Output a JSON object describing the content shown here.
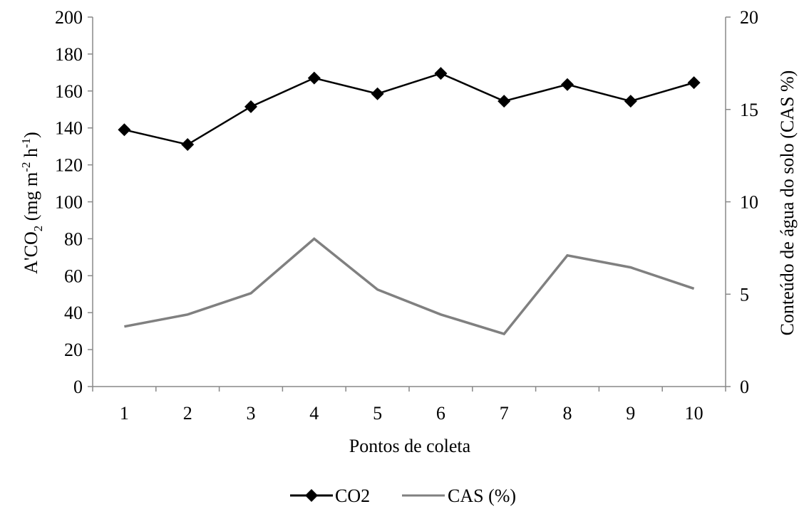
{
  "chart_data": {
    "type": "line",
    "title": "",
    "xlabel": "Pontos de coleta",
    "ylabel": {
      "base": "A'CO",
      "sub": "2",
      "mid": " (mg m",
      "sup1": "-2",
      "mid2": " h",
      "sup2": "-1",
      "end": ")"
    },
    "y2label": "Conteúdo de água do solo (CAS %)",
    "categories": [
      "1",
      "2",
      "3",
      "4",
      "5",
      "6",
      "7",
      "8",
      "9",
      "10"
    ],
    "ylim": [
      0,
      200
    ],
    "yticks": [
      "0",
      "20",
      "40",
      "60",
      "80",
      "100",
      "120",
      "140",
      "160",
      "180",
      "200"
    ],
    "y2lim": [
      0,
      20
    ],
    "y2ticks": [
      "0",
      "5",
      "10",
      "15",
      "20"
    ],
    "grid": false,
    "legend_position": "bottom",
    "series": [
      {
        "name": "CO2",
        "axis": "left",
        "color": "#000000",
        "marker": "diamond",
        "values": [
          139,
          131,
          151.5,
          167,
          158.5,
          169.5,
          154.5,
          163.5,
          154.5,
          164.5
        ]
      },
      {
        "name": "CAS (%)",
        "axis": "right",
        "color": "#808080",
        "marker": "none",
        "values": [
          3.25,
          3.9,
          5.05,
          8.0,
          5.25,
          3.9,
          2.85,
          7.1,
          6.45,
          5.3
        ]
      }
    ]
  }
}
